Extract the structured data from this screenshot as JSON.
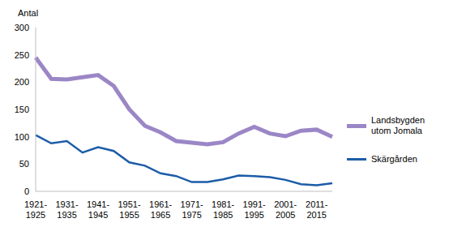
{
  "chart_data": {
    "type": "line",
    "y_label": "Antal",
    "categories": [
      "1921-1925",
      null,
      "1931-1935",
      null,
      "1941-1945",
      null,
      "1951-1955",
      null,
      "1961-1965",
      null,
      "1971-1975",
      null,
      "1981-1985",
      null,
      "1991-1995",
      null,
      "2001-2005",
      null,
      "2011-2015",
      null
    ],
    "series": [
      {
        "name": "Landsbygden utom Jomala",
        "color": "#9b86c6",
        "values": [
          245,
          206,
          205,
          209,
          213,
          193,
          150,
          120,
          108,
          92,
          89,
          86,
          90,
          106,
          118,
          106,
          101,
          111,
          113,
          100
        ]
      },
      {
        "name": "Skärgården",
        "color": "#1c5ca8",
        "values": [
          103,
          88,
          92,
          71,
          81,
          74,
          53,
          47,
          33,
          28,
          17,
          17,
          22,
          29,
          28,
          26,
          21,
          13,
          11,
          15
        ]
      }
    ],
    "ylim": [
      0,
      300
    ],
    "yticks": [
      0,
      50,
      100,
      150,
      200,
      250,
      300
    ],
    "grid": false,
    "legend": "right",
    "marker": "none"
  }
}
